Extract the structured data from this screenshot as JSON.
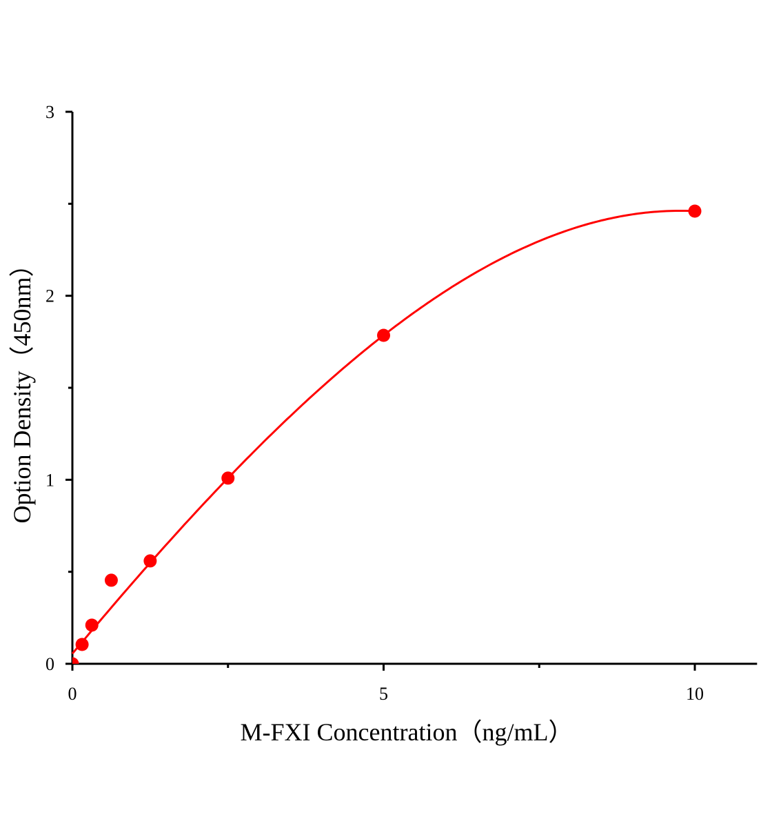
{
  "chart_data": {
    "type": "scatter",
    "title": "",
    "xlabel": "M-FXI Concentration（ng/mL）",
    "ylabel": "Option Density（450nm）",
    "xlim": [
      0,
      11
    ],
    "ylim": [
      0,
      3
    ],
    "xticks": [
      "0",
      "5",
      "10"
    ],
    "yticks": [
      "0",
      "1",
      "2",
      "3"
    ],
    "grid": false,
    "legend": "none",
    "color": "#ff0000",
    "points": {
      "x": [
        0,
        0.156,
        0.3125,
        0.625,
        1.25,
        2.5,
        5,
        10
      ],
      "y": [
        0,
        0.105,
        0.21,
        0.454,
        0.559,
        1.009,
        1.785,
        2.46
      ]
    },
    "fit": {
      "type": "cubic",
      "coefficients": [
        0.055,
        0.4058,
        -0.00738,
        -0.000915
      ],
      "x_range": [
        0,
        10
      ]
    }
  }
}
